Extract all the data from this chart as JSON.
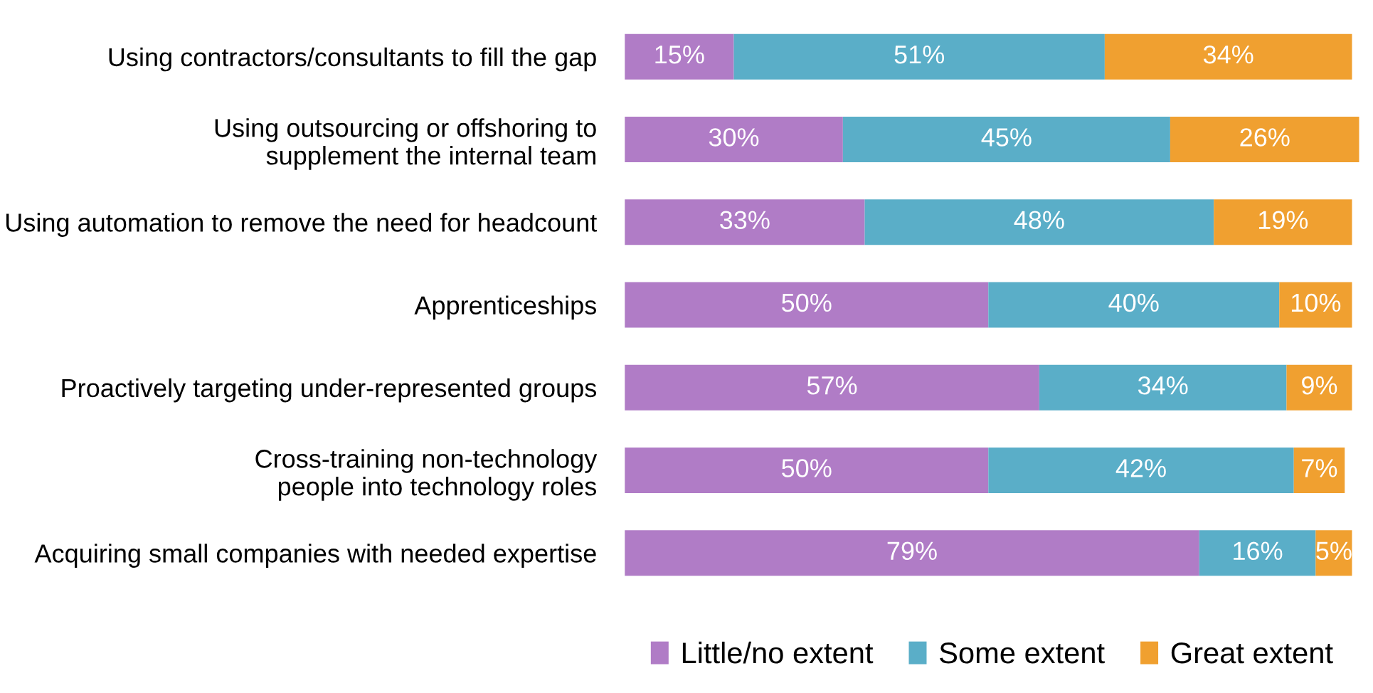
{
  "chart_data": {
    "type": "bar",
    "orientation": "horizontal",
    "stacked": true,
    "legend": "bottom",
    "grid": false,
    "categories": [
      "Using contractors/consultants to fill the gap",
      "Using outsourcing or offshoring to\nsupplement the internal team",
      "Using automation to remove the need for headcount",
      "Apprenticeships",
      "Proactively targeting under-represented groups",
      "Cross-training non-technology\npeople into technology roles",
      "Acquiring small companies with needed expertise"
    ],
    "series": [
      {
        "name": "Little/no extent",
        "color": "#b07cc6",
        "values": [
          15,
          30,
          33,
          50,
          57,
          50,
          79
        ],
        "value_labels": [
          "15%",
          "30%",
          "33%",
          "50%",
          "57%",
          "50%",
          "79%"
        ]
      },
      {
        "name": "Some extent",
        "color": "#5aaec8",
        "values": [
          51,
          45,
          48,
          40,
          34,
          42,
          16
        ],
        "value_labels": [
          "51%",
          "45%",
          "48%",
          "40%",
          "34%",
          "42%",
          "16%"
        ]
      },
      {
        "name": "Great extent",
        "color": "#f0a030",
        "values": [
          34,
          26,
          19,
          10,
          9,
          7,
          5
        ],
        "value_labels": [
          "34%",
          "26%",
          "19%",
          "10%",
          "9%",
          "7%",
          "5%"
        ]
      }
    ]
  }
}
